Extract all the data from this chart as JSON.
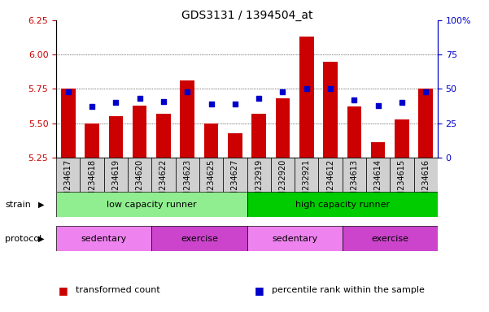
{
  "title": "GDS3131 / 1394504_at",
  "samples": [
    "GSM234617",
    "GSM234618",
    "GSM234619",
    "GSM234620",
    "GSM234622",
    "GSM234623",
    "GSM234625",
    "GSM234627",
    "GSM232919",
    "GSM232920",
    "GSM232921",
    "GSM234612",
    "GSM234613",
    "GSM234614",
    "GSM234615",
    "GSM234616"
  ],
  "bar_values": [
    5.75,
    5.5,
    5.55,
    5.63,
    5.57,
    5.81,
    5.5,
    5.43,
    5.57,
    5.68,
    6.13,
    5.95,
    5.62,
    5.36,
    5.53,
    5.75
  ],
  "dot_values": [
    48,
    37,
    40,
    43,
    41,
    48,
    39,
    39,
    43,
    48,
    50,
    50,
    42,
    38,
    40,
    48
  ],
  "ymin": 5.25,
  "ymax": 6.25,
  "yticks": [
    5.25,
    5.5,
    5.75,
    6.0,
    6.25
  ],
  "y2min": 0,
  "y2max": 100,
  "y2ticks": [
    0,
    25,
    50,
    75,
    100
  ],
  "bar_color": "#cc0000",
  "dot_color": "#0000cc",
  "bar_baseline": 5.25,
  "strain_groups": [
    {
      "label": "low capacity runner",
      "start": 0,
      "end": 8,
      "color": "#90ee90"
    },
    {
      "label": "high capacity runner",
      "start": 8,
      "end": 16,
      "color": "#00cc00"
    }
  ],
  "protocol_groups": [
    {
      "label": "sedentary",
      "start": 0,
      "end": 4,
      "color": "#ee82ee"
    },
    {
      "label": "exercise",
      "start": 4,
      "end": 8,
      "color": "#cc44cc"
    },
    {
      "label": "sedentary",
      "start": 8,
      "end": 12,
      "color": "#ee82ee"
    },
    {
      "label": "exercise",
      "start": 12,
      "end": 16,
      "color": "#cc44cc"
    }
  ],
  "legend_items": [
    {
      "label": "transformed count",
      "color": "#cc0000"
    },
    {
      "label": "percentile rank within the sample",
      "color": "#0000cc"
    }
  ],
  "grid_color": "#000000",
  "tick_color_left": "#cc0000",
  "tick_color_right": "#0000cc",
  "background_color": "#ffffff",
  "plot_bg": "#ffffff",
  "xlabel_bg": "#d0d0d0"
}
